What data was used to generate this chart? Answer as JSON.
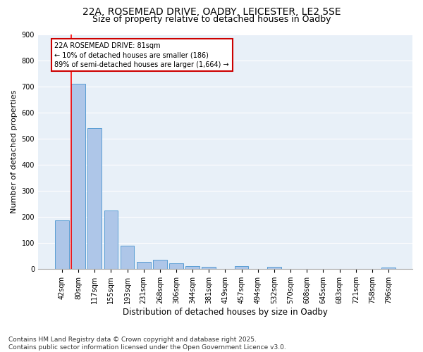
{
  "title1": "22A, ROSEMEAD DRIVE, OADBY, LEICESTER, LE2 5SE",
  "title2": "Size of property relative to detached houses in Oadby",
  "xlabel": "Distribution of detached houses by size in Oadby",
  "ylabel": "Number of detached properties",
  "bar_labels": [
    "42sqm",
    "80sqm",
    "117sqm",
    "155sqm",
    "193sqm",
    "231sqm",
    "268sqm",
    "306sqm",
    "344sqm",
    "381sqm",
    "419sqm",
    "457sqm",
    "494sqm",
    "532sqm",
    "570sqm",
    "608sqm",
    "645sqm",
    "683sqm",
    "721sqm",
    "758sqm",
    "796sqm"
  ],
  "bar_values": [
    186,
    710,
    540,
    225,
    90,
    28,
    37,
    23,
    12,
    8,
    0,
    12,
    0,
    8,
    0,
    0,
    0,
    0,
    0,
    0,
    5
  ],
  "bar_color": "#aec6e8",
  "bar_edge_color": "#5a9ed4",
  "background_color": "#e8f0f8",
  "ylim": [
    0,
    900
  ],
  "yticks": [
    0,
    100,
    200,
    300,
    400,
    500,
    600,
    700,
    800,
    900
  ],
  "annotation_line1": "22A ROSEMEAD DRIVE: 81sqm",
  "annotation_line2": "← 10% of detached houses are smaller (186)",
  "annotation_line3": "89% of semi-detached houses are larger (1,664) →",
  "annotation_box_color": "#cc0000",
  "footnote": "Contains HM Land Registry data © Crown copyright and database right 2025.\nContains public sector information licensed under the Open Government Licence v3.0.",
  "title1_fontsize": 10,
  "title2_fontsize": 9,
  "xlabel_fontsize": 8.5,
  "ylabel_fontsize": 8,
  "footnote_fontsize": 6.5,
  "tick_fontsize": 7
}
